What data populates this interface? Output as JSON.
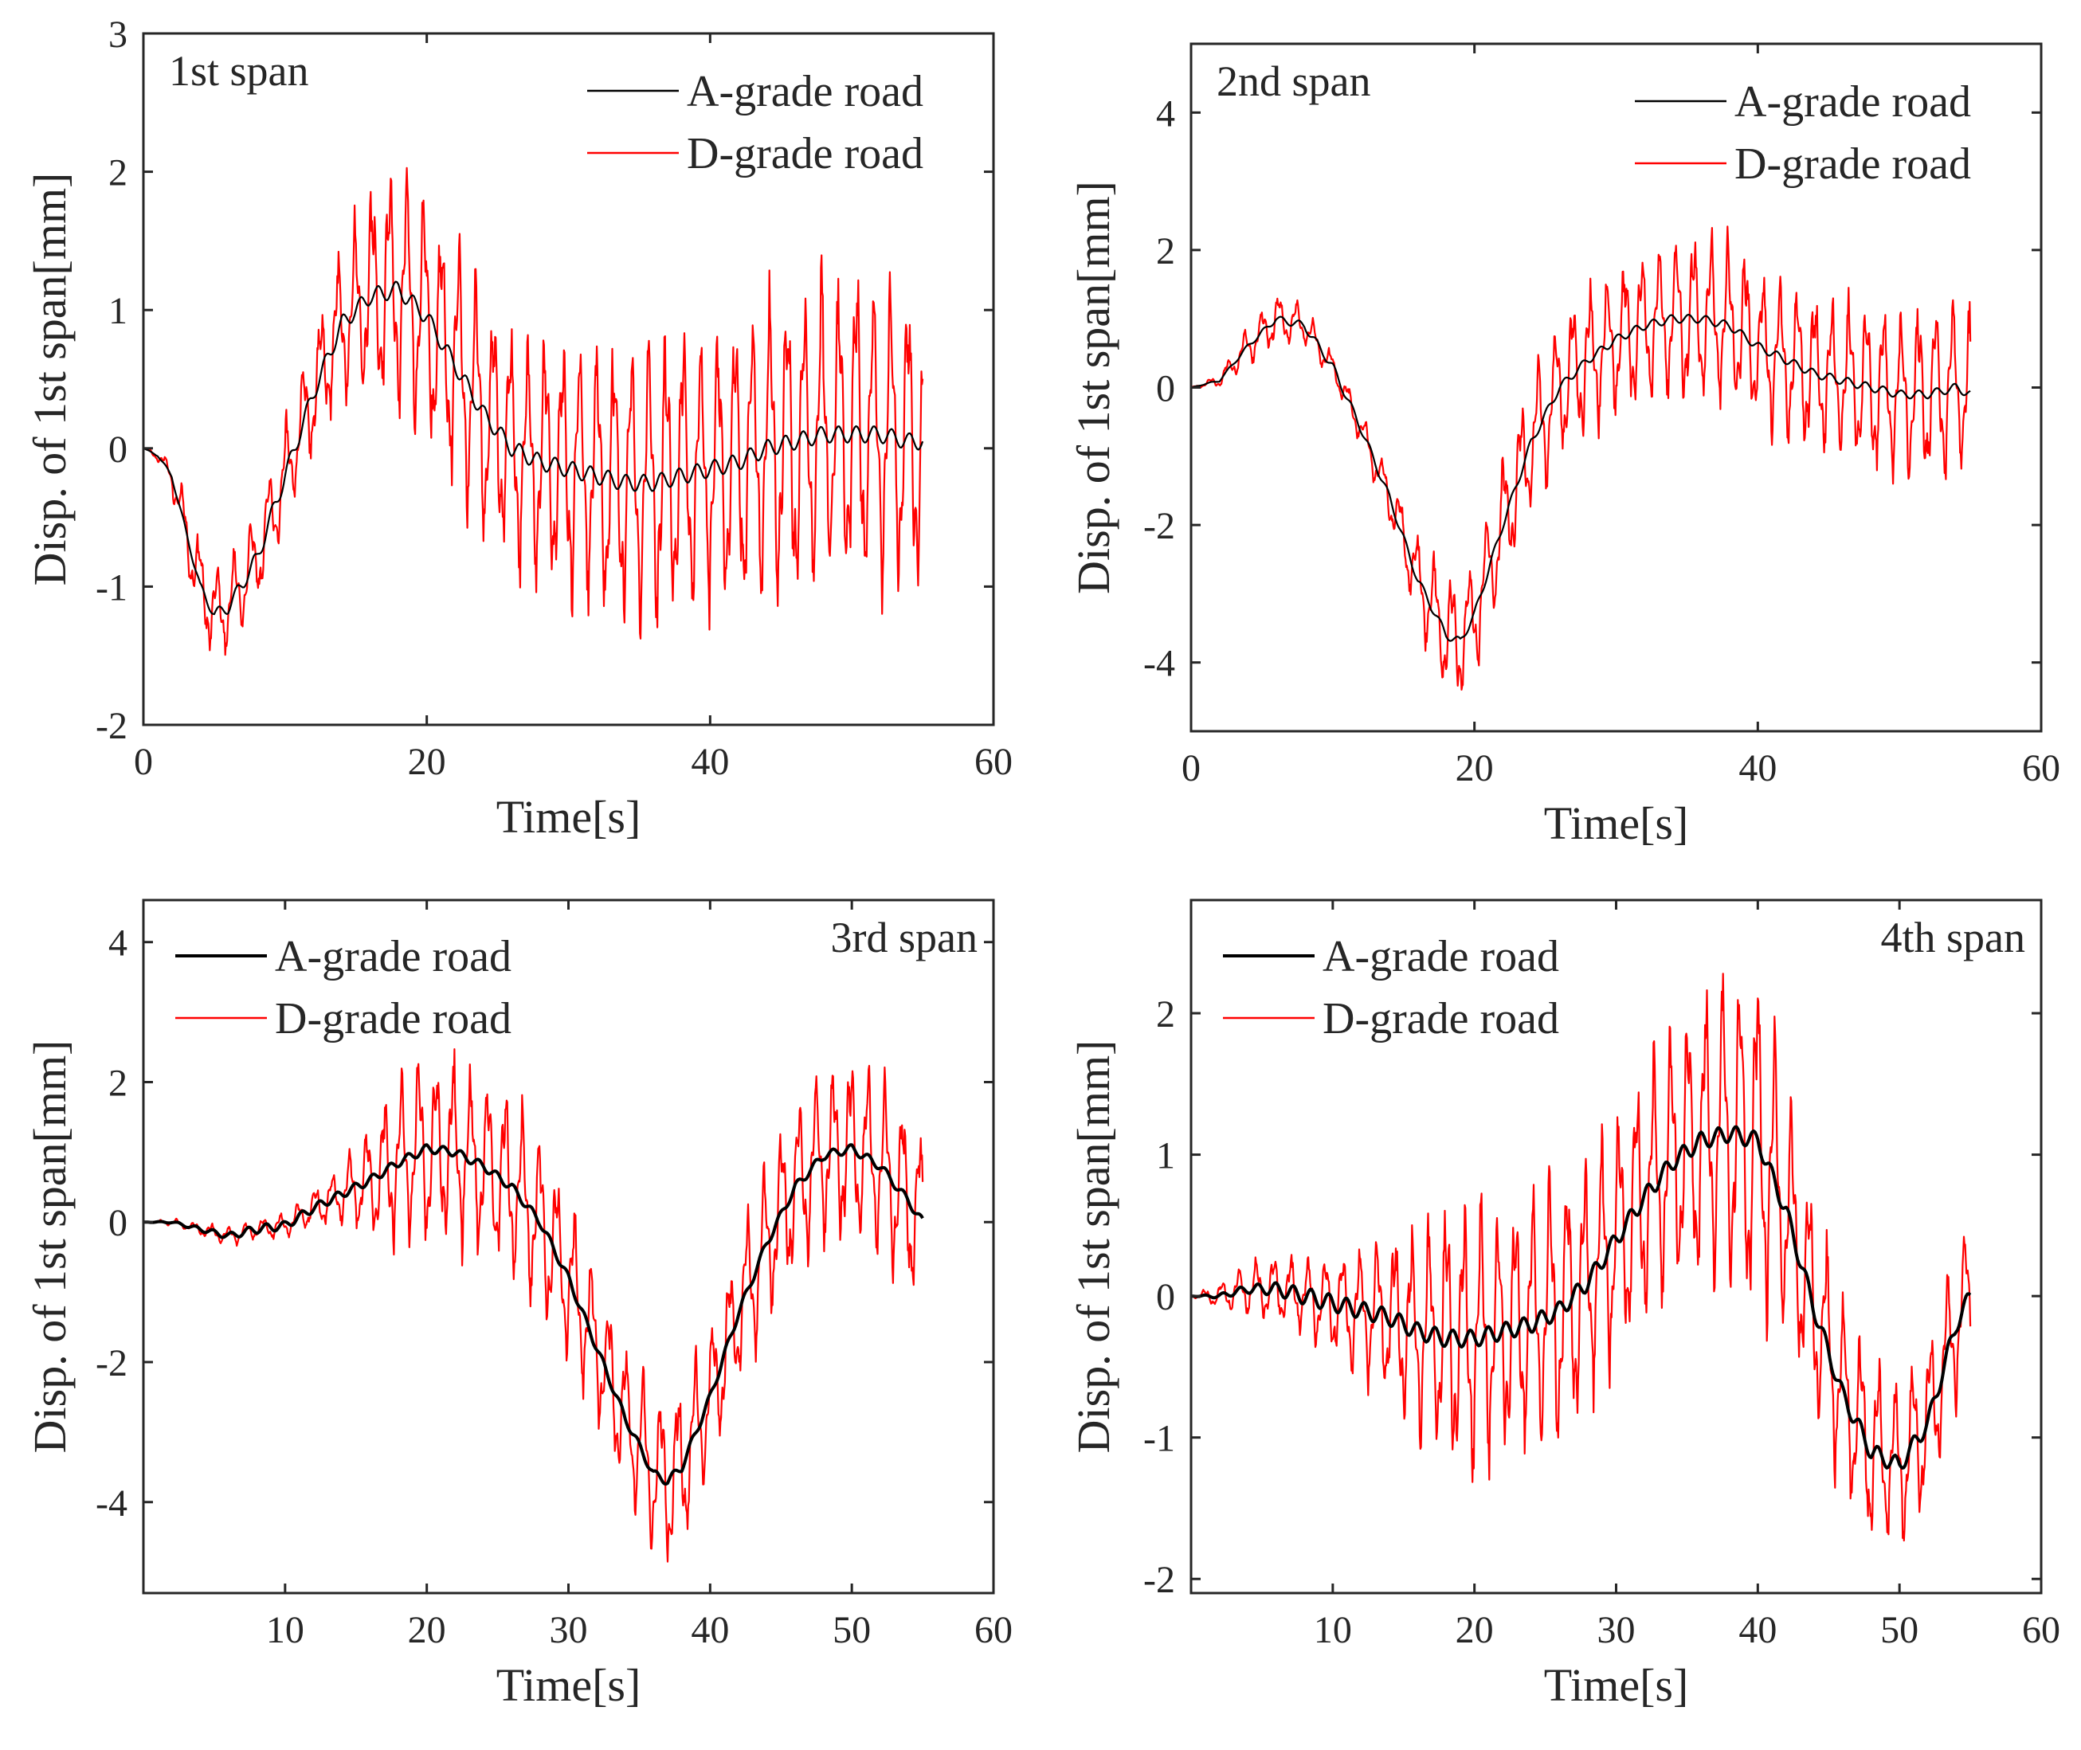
{
  "chart_data": [
    {
      "type": "line",
      "title": "",
      "panel_label": "1st span",
      "xlabel": "Time[s]",
      "ylabel": "Disp. of 1st span[mm]",
      "xlim": [
        0,
        60
      ],
      "ylim": [
        -2,
        3
      ],
      "xticks": [
        0,
        20,
        40,
        60
      ],
      "xtick_labels": [
        "0",
        "20",
        "40",
        "60"
      ],
      "yticks": [
        -2,
        -1,
        0,
        1,
        2,
        3
      ],
      "ytick_labels": [
        "-2",
        "-1",
        "0",
        "1",
        "2",
        "3"
      ],
      "grid": false,
      "legend_position": "top-right",
      "series": [
        {
          "name": "A-grade road",
          "color": "#000000",
          "width": "thin",
          "x": [
            0,
            1,
            2,
            3,
            4,
            5,
            6,
            8,
            10,
            12,
            14,
            16,
            18,
            20,
            22,
            24,
            26,
            28,
            30,
            32,
            34,
            36,
            38,
            40,
            42,
            44,
            46,
            48,
            50,
            52,
            54,
            55
          ],
          "values": [
            0,
            -0.05,
            -0.2,
            -0.6,
            -1.0,
            -1.2,
            -1.15,
            -0.8,
            -0.2,
            0.4,
            0.9,
            1.1,
            1.15,
            0.95,
            0.6,
            0.25,
            0.0,
            -0.1,
            -0.15,
            -0.2,
            -0.25,
            -0.25,
            -0.2,
            -0.15,
            -0.1,
            0.0,
            0.05,
            0.1,
            0.1,
            0.1,
            0.05,
            0.05
          ]
        },
        {
          "name": "D-grade road",
          "color": "#ff0000",
          "width": "thin",
          "x": [
            0,
            1,
            2,
            3,
            4,
            5,
            6,
            8,
            10,
            12,
            14,
            16,
            18,
            20,
            22,
            24,
            26,
            28,
            30,
            32,
            34,
            36,
            38,
            40,
            42,
            44,
            46,
            48,
            50,
            52,
            54,
            55
          ],
          "values": [
            0,
            -0.05,
            -0.2,
            -0.6,
            -1.0,
            -1.2,
            -1.15,
            -0.8,
            -0.2,
            0.4,
            0.9,
            1.1,
            1.15,
            0.95,
            0.6,
            0.25,
            0.0,
            -0.1,
            -0.15,
            -0.2,
            -0.25,
            -0.25,
            -0.2,
            -0.15,
            -0.1,
            0.0,
            0.05,
            0.1,
            0.1,
            0.1,
            0.05,
            0.05
          ],
          "oscillation_amplitude": [
            0,
            0.05,
            0.1,
            0.3,
            0.35,
            0.35,
            0.35,
            0.35,
            0.4,
            0.45,
            0.6,
            0.8,
            0.95,
            0.95,
            0.95,
            0.95,
            0.9,
            0.95,
            1.0,
            1.05,
            1.1,
            1.1,
            1.1,
            1.1,
            1.15,
            1.2,
            1.2,
            1.25,
            1.25,
            1.25,
            1.2,
            1.2
          ]
        }
      ]
    },
    {
      "type": "line",
      "title": "",
      "panel_label": "2nd span",
      "xlabel": "Time[s]",
      "ylabel": "Disp. of 1st span[mm]",
      "xlim": [
        0,
        60
      ],
      "ylim": [
        -5,
        5
      ],
      "xticks": [
        0,
        20,
        40,
        60
      ],
      "xtick_labels": [
        "0",
        "20",
        "40",
        "60"
      ],
      "yticks": [
        -4,
        -2,
        0,
        2,
        4
      ],
      "ytick_labels": [
        "-4",
        "-2",
        "0",
        "2",
        "4"
      ],
      "grid": false,
      "legend_position": "top-right",
      "series": [
        {
          "name": "A-grade road",
          "color": "#000000",
          "width": "thin",
          "x": [
            0,
            2,
            4,
            6,
            8,
            10,
            12,
            14,
            16,
            18,
            19,
            20,
            22,
            24,
            26,
            28,
            30,
            32,
            34,
            36,
            38,
            40,
            42,
            44,
            46,
            48,
            50,
            52,
            54,
            55
          ],
          "values": [
            0,
            0.1,
            0.6,
            1.0,
            0.9,
            0.3,
            -0.6,
            -1.6,
            -2.8,
            -3.6,
            -3.7,
            -3.3,
            -2.0,
            -0.8,
            0.0,
            0.4,
            0.7,
            0.9,
            1.0,
            1.0,
            0.9,
            0.6,
            0.4,
            0.2,
            0.1,
            0.0,
            -0.1,
            -0.1,
            0.0,
            -0.1
          ]
        },
        {
          "name": "D-grade road",
          "color": "#ff0000",
          "width": "thin",
          "x": [
            0,
            2,
            4,
            6,
            8,
            10,
            12,
            14,
            16,
            18,
            19,
            20,
            22,
            24,
            26,
            28,
            30,
            32,
            34,
            36,
            38,
            40,
            42,
            44,
            46,
            48,
            50,
            52,
            54,
            55
          ],
          "values": [
            0,
            0.1,
            0.6,
            1.0,
            0.9,
            0.3,
            -0.6,
            -1.6,
            -2.8,
            -3.6,
            -3.7,
            -3.3,
            -2.0,
            -0.8,
            0.0,
            0.4,
            0.7,
            0.9,
            1.0,
            1.0,
            0.9,
            0.6,
            0.4,
            0.2,
            0.1,
            0.0,
            -0.1,
            -0.1,
            0.0,
            -0.1
          ],
          "oscillation_amplitude": [
            0,
            0.1,
            0.3,
            0.4,
            0.3,
            0.2,
            0.25,
            0.4,
            0.7,
            0.9,
            0.9,
            0.95,
            1.0,
            1.05,
            1.1,
            1.15,
            1.15,
            1.2,
            1.2,
            1.3,
            1.3,
            1.2,
            1.2,
            1.2,
            1.25,
            1.3,
            1.3,
            1.35,
            1.35,
            1.35
          ]
        }
      ]
    },
    {
      "type": "line",
      "title": "",
      "panel_label": "3rd span",
      "xlabel": "Time[s]",
      "ylabel": "Disp. of 1st span[mm]",
      "xlim": [
        0,
        60
      ],
      "ylim": [
        -5.3,
        4.6
      ],
      "xticks": [
        10,
        20,
        30,
        40,
        50,
        60
      ],
      "xtick_labels": [
        "10",
        "20",
        "30",
        "40",
        "50",
        "60"
      ],
      "yticks": [
        -4,
        -2,
        0,
        2,
        4
      ],
      "ytick_labels": [
        "-4",
        "-2",
        "0",
        "2",
        "4"
      ],
      "grid": false,
      "legend_position": "top-left",
      "series": [
        {
          "name": "A-grade road",
          "color": "#000000",
          "width": "thick",
          "x": [
            0,
            2,
            4,
            6,
            8,
            10,
            12,
            14,
            16,
            18,
            20,
            22,
            24,
            26,
            28,
            30,
            32,
            34,
            36,
            37,
            38,
            40,
            42,
            44,
            46,
            48,
            50,
            52,
            54,
            55
          ],
          "values": [
            0,
            0,
            -0.1,
            -0.2,
            -0.1,
            -0.05,
            0.2,
            0.4,
            0.6,
            0.85,
            1.05,
            1.0,
            0.8,
            0.5,
            0.0,
            -0.8,
            -1.8,
            -2.8,
            -3.6,
            -3.7,
            -3.5,
            -2.5,
            -1.3,
            -0.3,
            0.5,
            0.95,
            1.05,
            0.8,
            0.3,
            0.0
          ]
        },
        {
          "name": "D-grade road",
          "color": "#ff0000",
          "width": "thin",
          "x": [
            0,
            2,
            4,
            6,
            8,
            10,
            12,
            14,
            16,
            18,
            20,
            22,
            24,
            26,
            28,
            30,
            32,
            34,
            36,
            37,
            38,
            40,
            42,
            44,
            46,
            48,
            50,
            52,
            54,
            55
          ],
          "values": [
            0,
            0,
            -0.1,
            -0.2,
            -0.1,
            -0.05,
            0.2,
            0.4,
            0.6,
            0.85,
            1.05,
            1.0,
            0.8,
            0.5,
            0.0,
            -0.8,
            -1.8,
            -2.8,
            -3.6,
            -3.7,
            -3.5,
            -2.5,
            -1.3,
            -0.3,
            0.5,
            0.95,
            1.05,
            0.8,
            0.3,
            0.0
          ],
          "oscillation_amplitude": [
            0,
            0.05,
            0.1,
            0.15,
            0.15,
            0.2,
            0.3,
            0.45,
            0.85,
            1.3,
            1.4,
            1.4,
            1.4,
            1.4,
            1.35,
            1.2,
            1.1,
            1.1,
            1.2,
            1.3,
            1.3,
            1.1,
            1.1,
            1.2,
            1.3,
            1.35,
            1.35,
            1.35,
            1.4,
            1.4
          ]
        }
      ]
    },
    {
      "type": "line",
      "title": "",
      "panel_label": "4th span",
      "xlabel": "Time[s]",
      "ylabel": "Disp. of 1st span[mm]",
      "xlim": [
        0,
        60
      ],
      "ylim": [
        -2.1,
        2.8
      ],
      "xticks": [
        10,
        20,
        30,
        40,
        50,
        60
      ],
      "xtick_labels": [
        "10",
        "20",
        "30",
        "40",
        "50",
        "60"
      ],
      "yticks": [
        -2,
        -1,
        0,
        1,
        2
      ],
      "ytick_labels": [
        "-2",
        "-1",
        "0",
        "1",
        "2"
      ],
      "grid": false,
      "legend_position": "top-left",
      "series": [
        {
          "name": "A-grade road",
          "color": "#000000",
          "width": "thick",
          "x": [
            0,
            2,
            4,
            6,
            8,
            10,
            12,
            14,
            16,
            18,
            20,
            22,
            24,
            26,
            28,
            30,
            32,
            34,
            36,
            38,
            40,
            42,
            44,
            46,
            48,
            50,
            52,
            54,
            55
          ],
          "values": [
            0,
            0,
            0.05,
            0.05,
            0.0,
            -0.05,
            -0.1,
            -0.15,
            -0.25,
            -0.3,
            -0.3,
            -0.25,
            -0.2,
            -0.1,
            0.1,
            0.4,
            0.7,
            0.95,
            1.1,
            1.15,
            1.1,
            0.6,
            -0.1,
            -0.7,
            -1.1,
            -1.2,
            -0.9,
            -0.2,
            0.0
          ]
        },
        {
          "name": "D-grade road",
          "color": "#ff0000",
          "width": "thin",
          "x": [
            0,
            2,
            4,
            6,
            8,
            10,
            12,
            14,
            16,
            18,
            20,
            22,
            24,
            26,
            28,
            30,
            32,
            34,
            36,
            38,
            40,
            42,
            44,
            46,
            48,
            50,
            52,
            54,
            55
          ],
          "values": [
            0,
            0,
            0.05,
            0.05,
            0.0,
            -0.05,
            -0.1,
            -0.15,
            -0.25,
            -0.3,
            -0.3,
            -0.25,
            -0.2,
            -0.1,
            0.1,
            0.4,
            0.7,
            0.95,
            1.1,
            1.15,
            1.1,
            0.6,
            -0.1,
            -0.7,
            -1.1,
            -1.2,
            -0.9,
            -0.2,
            0.0
          ],
          "oscillation_amplitude": [
            0,
            0.1,
            0.2,
            0.25,
            0.3,
            0.4,
            0.5,
            0.6,
            0.8,
            1.0,
            1.0,
            0.9,
            1.0,
            1.05,
            0.9,
            0.9,
            0.95,
            1.0,
            1.1,
            1.2,
            1.3,
            0.9,
            0.8,
            0.75,
            0.7,
            0.6,
            0.6,
            0.6,
            0.6
          ]
        }
      ]
    }
  ]
}
